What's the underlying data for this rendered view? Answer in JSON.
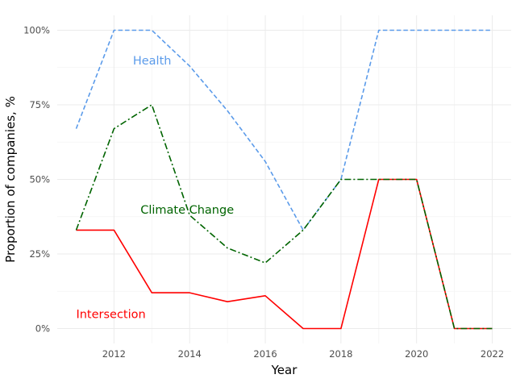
{
  "chart_data": {
    "type": "line",
    "xlabel": "Year",
    "ylabel": "Proportion of companies, %",
    "x": [
      2011,
      2012,
      2013,
      2014,
      2015,
      2016,
      2017,
      2018,
      2019,
      2020,
      2021,
      2022
    ],
    "xlim": [
      2010.5,
      2022.5
    ],
    "ylim": [
      -5,
      105
    ],
    "x_ticks": [
      2012,
      2014,
      2016,
      2018,
      2020,
      2022
    ],
    "x_tick_labels": [
      "2012",
      "2014",
      "2016",
      "2018",
      "2020",
      "2022"
    ],
    "y_ticks": [
      0,
      25,
      50,
      75,
      100
    ],
    "y_tick_labels": [
      "0%",
      "25%",
      "50%",
      "75%",
      "100%"
    ],
    "grid": true,
    "legend": "none",
    "series": [
      {
        "name": "Health",
        "color": "#5b9bea",
        "dash": "dashed",
        "values": [
          67,
          100,
          100,
          88,
          73,
          56,
          33,
          50,
          100,
          100,
          100,
          100
        ],
        "label_anchor": [
          2012.5,
          88.5
        ]
      },
      {
        "name": "Climate Change",
        "color": "#006400",
        "dash": "dashdot",
        "values": [
          33,
          67,
          75,
          38,
          27,
          22,
          33,
          50,
          50,
          50,
          0,
          0
        ],
        "label_anchor": [
          2012.7,
          38.5
        ]
      },
      {
        "name": "Intersection",
        "color": "#ff0000",
        "dash": "solid",
        "values": [
          33,
          33,
          12,
          12,
          9,
          11,
          0,
          0,
          50,
          50,
          0,
          0
        ],
        "label_anchor": [
          2011.0,
          3.5
        ]
      }
    ]
  }
}
